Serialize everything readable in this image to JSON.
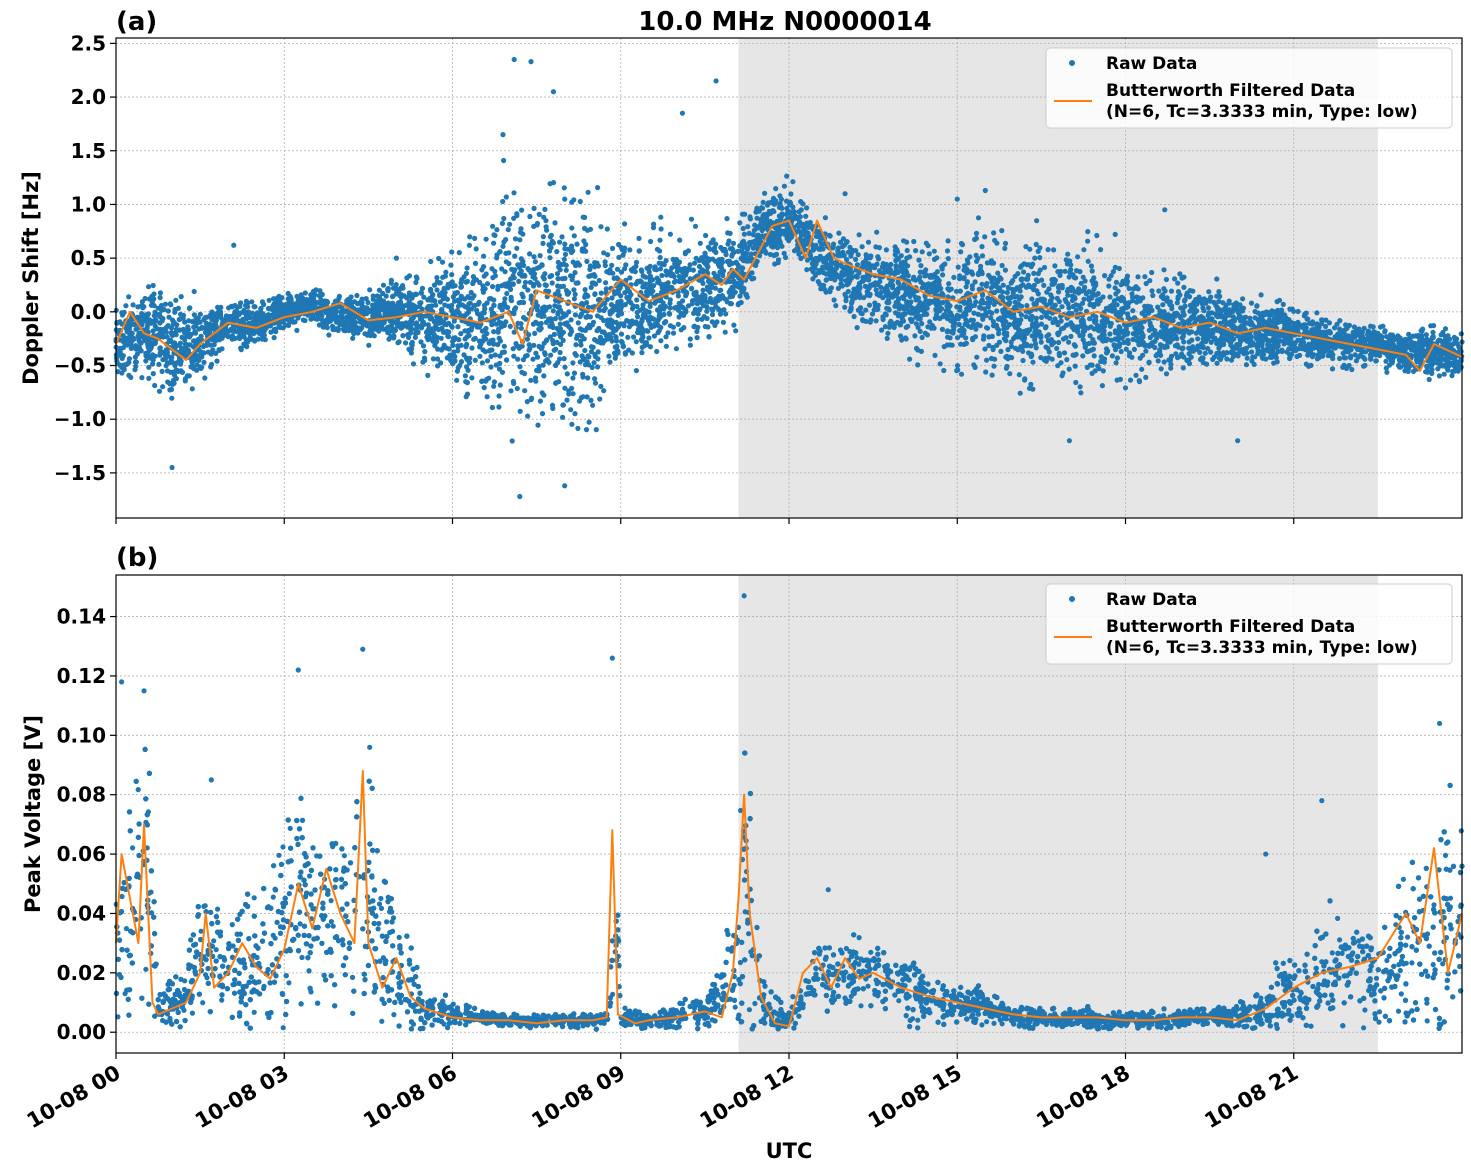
{
  "figure": {
    "title": "10.0 MHz N0000014",
    "xlabel": "UTC",
    "x_tick_labels": [
      "10-08 00",
      "10-08 03",
      "10-08 06",
      "10-08 09",
      "10-08 12",
      "10-08 15",
      "10-08 18",
      "10-08 21"
    ]
  },
  "colors": {
    "raw": "#1f77b4",
    "filtered": "#ff7f0e",
    "shade": "#e6e6e6",
    "grid": "#b0b0b0"
  },
  "chart_data": [
    {
      "type": "scatter",
      "panel_label": "(a)",
      "ylabel": "Doppler Shift [Hz]",
      "x_unit": "hours UTC on 10-08",
      "xlim": [
        0,
        24
      ],
      "ylim": [
        -1.92,
        2.55
      ],
      "y_ticks": [
        -1.5,
        -1.0,
        -0.5,
        0.0,
        0.5,
        1.0,
        1.5,
        2.0,
        2.5
      ],
      "y_tick_labels": [
        "−1.5",
        "−1.0",
        "−0.5",
        "0.0",
        "0.5",
        "1.0",
        "1.5",
        "2.0",
        "2.5"
      ],
      "shaded_x_range": [
        11.1,
        22.5
      ],
      "grid": true,
      "legend": {
        "position": "top-right",
        "entries": [
          "Raw Data",
          "Butterworth Filtered Data",
          "(N=6, Tc=3.3333 min, Type: low)"
        ]
      },
      "series": [
        {
          "name": "Raw Data",
          "style": "points",
          "x": [
            0,
            0.5,
            1,
            1.5,
            2,
            2.5,
            3,
            3.5,
            4,
            4.5,
            5,
            5.5,
            6,
            6.5,
            7,
            7.5,
            8,
            8.5,
            9,
            9.5,
            10,
            10.5,
            11,
            11.5,
            12,
            12.5,
            13,
            13.5,
            14,
            14.5,
            15,
            15.5,
            16,
            16.5,
            17,
            17.5,
            18,
            18.5,
            19,
            19.5,
            20,
            20.5,
            21,
            21.5,
            22,
            22.5,
            23,
            23.5,
            24
          ],
          "y_center": [
            -0.25,
            -0.2,
            -0.35,
            -0.3,
            -0.1,
            -0.12,
            0.0,
            0.05,
            -0.05,
            -0.05,
            0.0,
            -0.05,
            -0.05,
            -0.08,
            0.05,
            0.05,
            0.05,
            0.0,
            0.1,
            0.15,
            0.2,
            0.28,
            0.3,
            0.75,
            0.85,
            0.55,
            0.35,
            0.28,
            0.18,
            0.12,
            0.05,
            0.08,
            0.0,
            0.0,
            -0.02,
            -0.05,
            -0.08,
            -0.1,
            -0.12,
            -0.15,
            -0.15,
            -0.2,
            -0.2,
            -0.25,
            -0.3,
            -0.3,
            -0.38,
            -0.38,
            -0.42
          ],
          "y_spread": [
            0.3,
            0.35,
            0.5,
            0.3,
            0.2,
            0.2,
            0.15,
            0.15,
            0.15,
            0.2,
            0.3,
            0.4,
            0.5,
            0.7,
            1.0,
            1.0,
            1.0,
            0.8,
            0.6,
            0.5,
            0.5,
            0.5,
            0.4,
            0.3,
            0.3,
            0.3,
            0.35,
            0.4,
            0.45,
            0.5,
            0.55,
            0.6,
            0.6,
            0.6,
            0.55,
            0.55,
            0.5,
            0.45,
            0.4,
            0.35,
            0.3,
            0.28,
            0.25,
            0.22,
            0.2,
            0.18,
            0.2,
            0.22,
            0.2
          ],
          "outliers": [
            [
              1.0,
              -1.45
            ],
            [
              2.1,
              0.62
            ],
            [
              5.0,
              0.5
            ],
            [
              6.9,
              1.65
            ],
            [
              7.1,
              2.35
            ],
            [
              7.2,
              -1.72
            ],
            [
              7.4,
              2.33
            ],
            [
              7.8,
              2.05
            ],
            [
              8.0,
              -1.62
            ],
            [
              10.1,
              1.85
            ],
            [
              10.7,
              2.15
            ],
            [
              13.0,
              1.1
            ],
            [
              15.0,
              1.05
            ],
            [
              15.5,
              1.13
            ],
            [
              17.0,
              -1.2
            ],
            [
              18.7,
              0.95
            ],
            [
              20.0,
              -1.2
            ]
          ]
        },
        {
          "name": "Butterworth Filtered Data",
          "style": "line",
          "x": [
            0,
            0.25,
            0.5,
            0.75,
            1,
            1.25,
            1.5,
            2,
            2.5,
            3,
            3.5,
            4,
            4.5,
            5,
            5.5,
            6,
            6.5,
            7,
            7.25,
            7.5,
            8,
            8.5,
            9,
            9.5,
            10,
            10.5,
            10.8,
            11,
            11.2,
            11.5,
            11.7,
            12,
            12.3,
            12.5,
            12.8,
            13,
            13.5,
            14,
            14.5,
            15,
            15.5,
            16,
            16.5,
            17,
            17.5,
            18,
            18.5,
            19,
            19.5,
            20,
            20.5,
            21,
            21.5,
            22,
            22.5,
            23,
            23.25,
            23.5,
            24
          ],
          "y": [
            -0.3,
            0.0,
            -0.2,
            -0.25,
            -0.35,
            -0.45,
            -0.3,
            -0.1,
            -0.15,
            -0.05,
            0.0,
            0.08,
            -0.08,
            -0.05,
            0.0,
            -0.05,
            -0.1,
            0.0,
            -0.3,
            0.2,
            0.1,
            0.0,
            0.3,
            0.1,
            0.2,
            0.35,
            0.25,
            0.4,
            0.3,
            0.6,
            0.8,
            0.85,
            0.5,
            0.85,
            0.5,
            0.45,
            0.35,
            0.3,
            0.15,
            0.1,
            0.2,
            0.0,
            0.05,
            -0.05,
            0.0,
            -0.1,
            -0.05,
            -0.15,
            -0.1,
            -0.2,
            -0.15,
            -0.2,
            -0.25,
            -0.3,
            -0.35,
            -0.4,
            -0.55,
            -0.3,
            -0.42
          ]
        }
      ]
    },
    {
      "type": "scatter",
      "panel_label": "(b)",
      "ylabel": "Peak Voltage [V]",
      "x_unit": "hours UTC on 10-08",
      "xlim": [
        0,
        24
      ],
      "ylim": [
        -0.007,
        0.154
      ],
      "y_ticks": [
        0.0,
        0.02,
        0.04,
        0.06,
        0.08,
        0.1,
        0.12,
        0.14
      ],
      "y_tick_labels": [
        "0.00",
        "0.02",
        "0.04",
        "0.06",
        "0.08",
        "0.10",
        "0.12",
        "0.14"
      ],
      "shaded_x_range": [
        11.1,
        22.5
      ],
      "grid": true,
      "legend": {
        "position": "top-right",
        "entries": [
          "Raw Data",
          "Butterworth Filtered Data",
          "(N=6, Tc=3.3333 min, Type: low)"
        ]
      },
      "series": [
        {
          "name": "Raw Data",
          "style": "points",
          "x": [
            0,
            0.25,
            0.5,
            0.6,
            0.75,
            1,
            1.25,
            1.5,
            1.7,
            2,
            2.5,
            3,
            3.25,
            3.5,
            4,
            4.25,
            4.5,
            4.75,
            5,
            5.25,
            5.5,
            6,
            6.5,
            7,
            7.5,
            8,
            8.5,
            8.8,
            8.9,
            9,
            9.5,
            10,
            10.25,
            10.5,
            11,
            11.25,
            11.5,
            12,
            12.5,
            13,
            13.5,
            14,
            14.5,
            15,
            15.5,
            16,
            16.5,
            17,
            17.5,
            18,
            18.5,
            19,
            19.5,
            20,
            20.5,
            21,
            21.5,
            22,
            22.5,
            23,
            23.25,
            23.5,
            23.75,
            24
          ],
          "y_center": [
            0.025,
            0.04,
            0.06,
            0.05,
            0.008,
            0.01,
            0.012,
            0.03,
            0.025,
            0.02,
            0.025,
            0.03,
            0.05,
            0.04,
            0.045,
            0.04,
            0.05,
            0.03,
            0.02,
            0.015,
            0.008,
            0.006,
            0.005,
            0.004,
            0.004,
            0.004,
            0.004,
            0.005,
            0.06,
            0.005,
            0.004,
            0.005,
            0.008,
            0.006,
            0.02,
            0.05,
            0.01,
            0.004,
            0.02,
            0.018,
            0.02,
            0.015,
            0.012,
            0.01,
            0.008,
            0.006,
            0.005,
            0.005,
            0.004,
            0.004,
            0.004,
            0.005,
            0.005,
            0.005,
            0.008,
            0.015,
            0.02,
            0.022,
            0.02,
            0.025,
            0.03,
            0.03,
            0.04,
            0.035
          ],
          "y_spread": [
            0.02,
            0.03,
            0.04,
            0.04,
            0.004,
            0.008,
            0.01,
            0.02,
            0.02,
            0.02,
            0.025,
            0.03,
            0.04,
            0.035,
            0.03,
            0.03,
            0.04,
            0.025,
            0.02,
            0.015,
            0.006,
            0.004,
            0.002,
            0.002,
            0.002,
            0.002,
            0.002,
            0.003,
            0.05,
            0.003,
            0.003,
            0.004,
            0.006,
            0.004,
            0.015,
            0.06,
            0.01,
            0.003,
            0.012,
            0.012,
            0.012,
            0.01,
            0.008,
            0.006,
            0.005,
            0.004,
            0.003,
            0.003,
            0.003,
            0.003,
            0.003,
            0.003,
            0.003,
            0.004,
            0.008,
            0.012,
            0.015,
            0.018,
            0.018,
            0.025,
            0.03,
            0.035,
            0.04,
            0.03
          ],
          "outliers": [
            [
              0.1,
              0.118
            ],
            [
              0.5,
              0.115
            ],
            [
              1.7,
              0.085
            ],
            [
              3.25,
              0.122
            ],
            [
              4.4,
              0.129
            ],
            [
              8.85,
              0.126
            ],
            [
              11.2,
              0.147
            ],
            [
              12.7,
              0.048
            ],
            [
              20.5,
              0.06
            ],
            [
              21.5,
              0.078
            ],
            [
              23.6,
              0.104
            ]
          ]
        },
        {
          "name": "Butterworth Filtered Data",
          "style": "line",
          "x": [
            0,
            0.1,
            0.25,
            0.4,
            0.5,
            0.55,
            0.65,
            0.75,
            1,
            1.25,
            1.5,
            1.6,
            1.75,
            2,
            2.25,
            2.5,
            2.75,
            3,
            3.25,
            3.5,
            3.75,
            4,
            4.25,
            4.4,
            4.5,
            4.75,
            5,
            5.25,
            5.5,
            6,
            6.5,
            7,
            7.5,
            8,
            8.5,
            8.75,
            8.85,
            8.95,
            9.25,
            9.5,
            10,
            10.5,
            10.8,
            11,
            11.1,
            11.2,
            11.3,
            11.5,
            11.75,
            12,
            12.25,
            12.5,
            12.75,
            13,
            13.25,
            13.5,
            14,
            14.5,
            15,
            15.5,
            16,
            16.5,
            17,
            17.5,
            18,
            18.5,
            19,
            19.5,
            20,
            20.25,
            20.5,
            21,
            21.5,
            22,
            22.5,
            23,
            23.25,
            23.5,
            23.75,
            24
          ],
          "y": [
            0.03,
            0.06,
            0.045,
            0.03,
            0.07,
            0.05,
            0.01,
            0.006,
            0.008,
            0.01,
            0.02,
            0.04,
            0.015,
            0.02,
            0.03,
            0.022,
            0.018,
            0.028,
            0.05,
            0.035,
            0.055,
            0.04,
            0.03,
            0.088,
            0.03,
            0.015,
            0.025,
            0.012,
            0.008,
            0.005,
            0.004,
            0.004,
            0.003,
            0.004,
            0.004,
            0.005,
            0.068,
            0.006,
            0.003,
            0.004,
            0.005,
            0.007,
            0.005,
            0.02,
            0.045,
            0.08,
            0.04,
            0.012,
            0.003,
            0.002,
            0.02,
            0.025,
            0.015,
            0.025,
            0.018,
            0.02,
            0.015,
            0.012,
            0.01,
            0.008,
            0.006,
            0.005,
            0.005,
            0.005,
            0.004,
            0.004,
            0.005,
            0.005,
            0.004,
            0.006,
            0.008,
            0.015,
            0.02,
            0.022,
            0.025,
            0.04,
            0.03,
            0.062,
            0.02,
            0.04
          ]
        }
      ]
    }
  ]
}
